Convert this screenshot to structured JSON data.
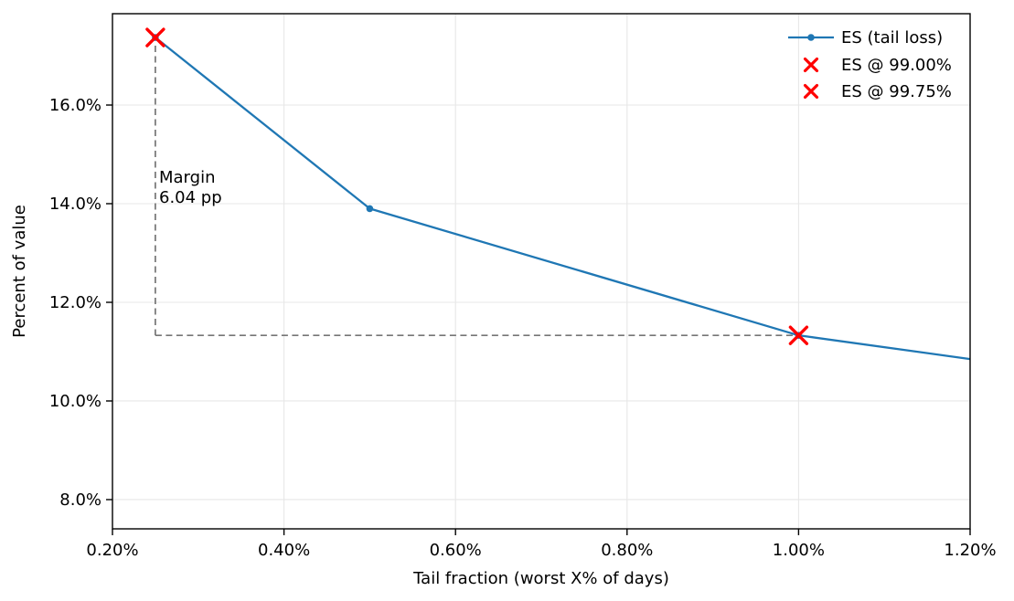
{
  "colors": {
    "line_blue": "#1f77b4",
    "marker_red": "#ff0000",
    "grid": "#e7e7e7",
    "dashed_gray": "#757575",
    "spine": "#000000",
    "text": "#000000",
    "background": "#ffffff"
  },
  "chart_data": {
    "type": "line",
    "title": "",
    "xlabel": "Tail fraction (worst X% of days)",
    "ylabel": "Percent of value",
    "xlim": [
      0.2,
      1.2
    ],
    "ylim": [
      7.407,
      17.852
    ],
    "grid": true,
    "x_ticks": {
      "values": [
        0.2,
        0.4,
        0.6,
        0.8,
        1.0,
        1.2
      ],
      "labels": [
        "0.20%",
        "0.40%",
        "0.60%",
        "0.80%",
        "1.00%",
        "1.20%"
      ]
    },
    "y_ticks": {
      "values": [
        8,
        10,
        12,
        14,
        16
      ],
      "labels": [
        "8.0%",
        "10.0%",
        "12.0%",
        "14.0%",
        "16.0%"
      ]
    },
    "series": [
      {
        "name": "ES (tail loss)",
        "color": "#1f77b4",
        "marker": "circle",
        "x": [
          0.25,
          0.5,
          1.0,
          1.2
        ],
        "y": [
          17.37,
          13.9,
          11.33,
          10.85
        ],
        "markers_at": [
          0.25,
          0.5,
          1.0
        ]
      }
    ],
    "point_markers": [
      {
        "name": "ES @ 99.75%",
        "shape": "x",
        "color": "#ff0000",
        "x": 0.25,
        "y": 17.37
      },
      {
        "name": "ES @ 99.00%",
        "shape": "x",
        "color": "#ff0000",
        "x": 1.0,
        "y": 11.33
      }
    ],
    "annotation": {
      "line1": "Margin",
      "line2": "6.04 pp",
      "x": 0.25,
      "y_top": 17.37,
      "y_level": 11.33,
      "x_right": 1.0
    },
    "legend": {
      "position": "upper right",
      "entries": [
        "ES (tail loss)",
        "ES @ 99.00%",
        "ES @ 99.75%"
      ]
    }
  }
}
